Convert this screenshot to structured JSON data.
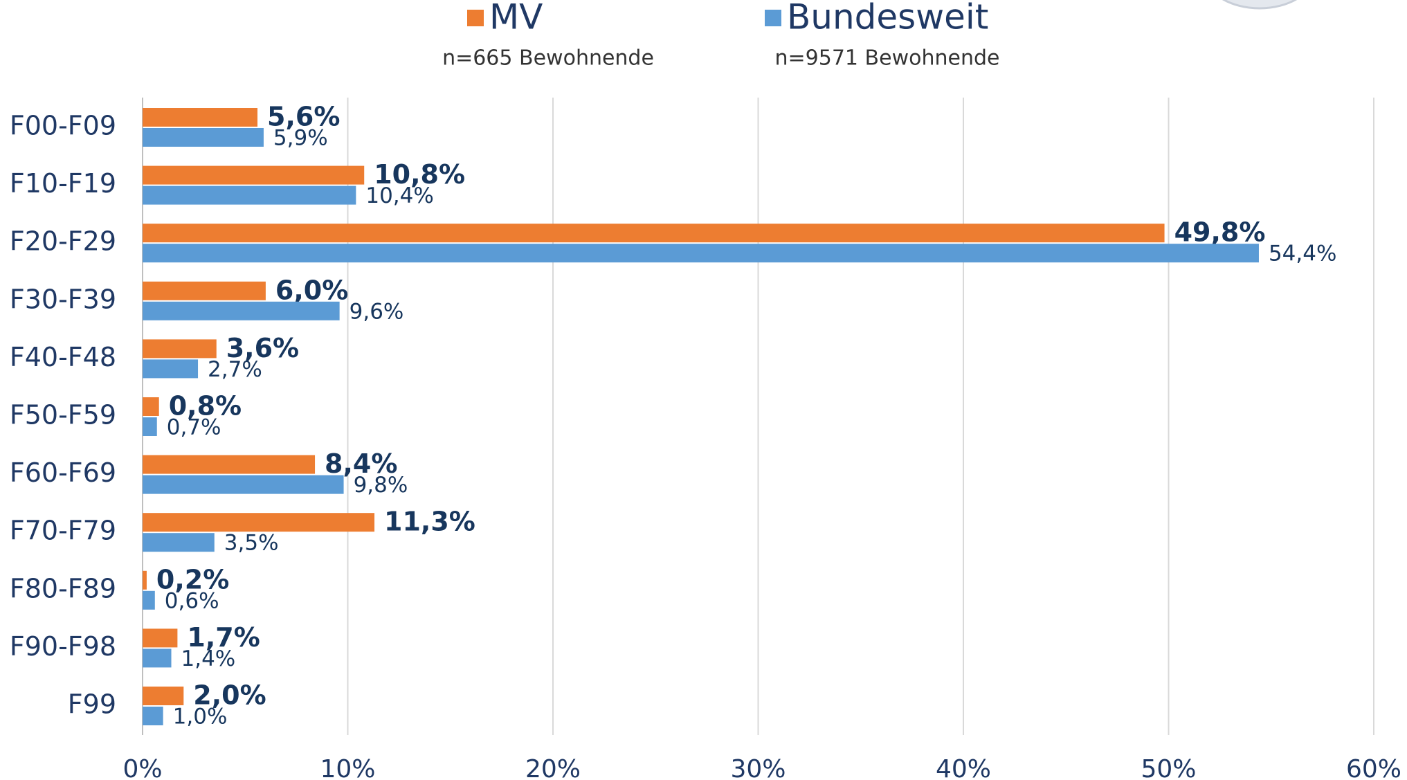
{
  "chart_data": {
    "type": "hbar",
    "categories": [
      "F00-F09",
      "F10-F19",
      "F20-F29",
      "F30-F39",
      "F40-F48",
      "F50-F59",
      "F60-F69",
      "F70-F79",
      "F80-F89",
      "F90-F98",
      "F99"
    ],
    "series": [
      {
        "name": "MV",
        "color": "#ed7d31",
        "values": [
          5.6,
          10.8,
          49.8,
          6.0,
          3.6,
          0.8,
          8.4,
          11.3,
          0.2,
          1.7,
          2.0
        ],
        "value_labels": [
          "5,6%",
          "10,8%",
          "49,8%",
          "6,0%",
          "3,6%",
          "0,8%",
          "8,4%",
          "11,3%",
          "0,2%",
          "1,7%",
          "2,0%"
        ]
      },
      {
        "name": "Bundesweit",
        "color": "#5b9bd5",
        "values": [
          5.9,
          10.4,
          54.4,
          9.6,
          2.7,
          0.7,
          9.8,
          3.5,
          0.6,
          1.4,
          1.0
        ],
        "value_labels": [
          "5,9%",
          "10,4%",
          "54,4%",
          "9,6%",
          "2,7%",
          "0,7%",
          "9,8%",
          "3,5%",
          "0,6%",
          "1,4%",
          "1,0%"
        ]
      }
    ],
    "annotations": [
      "n=665 Bewohnende",
      "n=9571 Bewohnende"
    ],
    "xlim": [
      0,
      60
    ],
    "xticks": [
      {
        "value": 0,
        "label": "0%"
      },
      {
        "value": 10,
        "label": "10%"
      },
      {
        "value": 20,
        "label": "20%"
      },
      {
        "value": 30,
        "label": "30%"
      },
      {
        "value": 40,
        "label": "40%"
      },
      {
        "value": 50,
        "label": "50%"
      },
      {
        "value": 60,
        "label": "60%"
      }
    ],
    "grid": true
  }
}
